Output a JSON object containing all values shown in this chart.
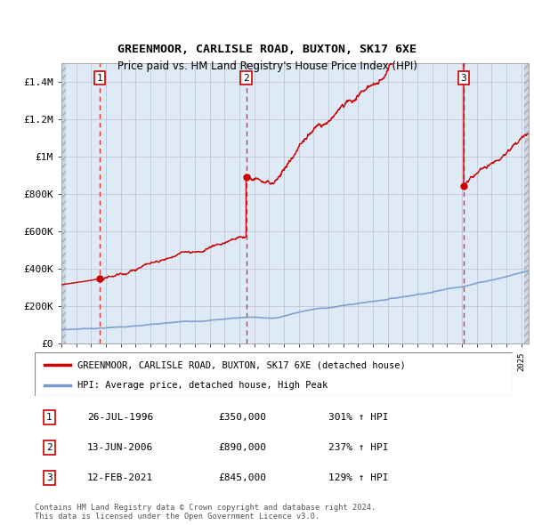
{
  "title1": "GREENMOOR, CARLISLE ROAD, BUXTON, SK17 6XE",
  "title2": "Price paid vs. HM Land Registry's House Price Index (HPI)",
  "ylabel_ticks": [
    "£0",
    "£200K",
    "£400K",
    "£600K",
    "£800K",
    "£1M",
    "£1.2M",
    "£1.4M"
  ],
  "ytick_values": [
    0,
    200000,
    400000,
    600000,
    800000,
    1000000,
    1200000,
    1400000
  ],
  "ylim": [
    0,
    1500000
  ],
  "xlim_start": 1994.0,
  "xlim_end": 2025.5,
  "sale_dates": [
    1996.57,
    2006.45,
    2021.12
  ],
  "sale_prices": [
    350000,
    890000,
    845000
  ],
  "sale_labels": [
    "1",
    "2",
    "3"
  ],
  "vline_color": "#dd2222",
  "dot_color": "#cc0000",
  "hpi_line_color": "#7799cc",
  "price_line_color": "#cc0000",
  "bg_plot_color": "#deeaf5",
  "bg_hatch_color": "#c8d8e8",
  "grid_color": "#bbbbcc",
  "legend1": "GREENMOOR, CARLISLE ROAD, BUXTON, SK17 6XE (detached house)",
  "legend2": "HPI: Average price, detached house, High Peak",
  "table_rows": [
    [
      "1",
      "26-JUL-1996",
      "£350,000",
      "301% ↑ HPI"
    ],
    [
      "2",
      "13-JUN-2006",
      "£890,000",
      "237% ↑ HPI"
    ],
    [
      "3",
      "12-FEB-2021",
      "£845,000",
      "129% ↑ HPI"
    ]
  ],
  "footer": "Contains HM Land Registry data © Crown copyright and database right 2024.\nThis data is licensed under the Open Government Licence v3.0."
}
